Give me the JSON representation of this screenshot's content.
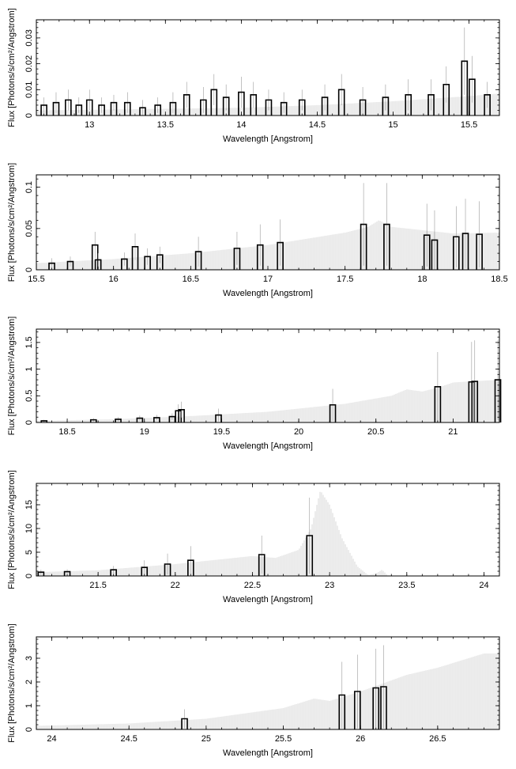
{
  "chart_data": [
    {
      "type": "line",
      "xlabel": "Wavelength [Angstrom]",
      "ylabel": "Flux [Photons/s/cm²/Angstrom]",
      "xlim": [
        12.65,
        15.7
      ],
      "ylim": [
        0,
        0.037
      ],
      "xticks": [
        13,
        13.5,
        14,
        14.5,
        15,
        15.5
      ],
      "xtick_labels": [
        "13",
        "13.5",
        "14",
        "14.5",
        "15",
        "15.5"
      ],
      "yticks": [
        0,
        0.01,
        0.02,
        0.03
      ],
      "ytick_labels": [
        "0",
        "0.01",
        "0.02",
        "0.03"
      ],
      "model_curve": {
        "x": [
          12.65,
          13.0,
          13.5,
          14.0,
          14.5,
          15.0,
          15.5,
          15.7
        ],
        "y": [
          0.002,
          0.0022,
          0.0026,
          0.003,
          0.004,
          0.0055,
          0.0075,
          0.0085
        ]
      },
      "data_points": [
        {
          "x": 12.7,
          "y": 0.004,
          "err": 0.003
        },
        {
          "x": 12.78,
          "y": 0.005,
          "err": 0.004
        },
        {
          "x": 12.86,
          "y": 0.006,
          "err": 0.004
        },
        {
          "x": 12.93,
          "y": 0.004,
          "err": 0.003
        },
        {
          "x": 13.0,
          "y": 0.006,
          "err": 0.004
        },
        {
          "x": 13.08,
          "y": 0.004,
          "err": 0.003
        },
        {
          "x": 13.16,
          "y": 0.005,
          "err": 0.003
        },
        {
          "x": 13.25,
          "y": 0.005,
          "err": 0.004
        },
        {
          "x": 13.35,
          "y": 0.003,
          "err": 0.003
        },
        {
          "x": 13.45,
          "y": 0.004,
          "err": 0.003
        },
        {
          "x": 13.55,
          "y": 0.005,
          "err": 0.004
        },
        {
          "x": 13.64,
          "y": 0.008,
          "err": 0.005
        },
        {
          "x": 13.75,
          "y": 0.006,
          "err": 0.005
        },
        {
          "x": 13.82,
          "y": 0.01,
          "err": 0.006
        },
        {
          "x": 13.9,
          "y": 0.007,
          "err": 0.005
        },
        {
          "x": 14.0,
          "y": 0.009,
          "err": 0.006
        },
        {
          "x": 14.08,
          "y": 0.008,
          "err": 0.005
        },
        {
          "x": 14.18,
          "y": 0.006,
          "err": 0.004
        },
        {
          "x": 14.28,
          "y": 0.005,
          "err": 0.004
        },
        {
          "x": 14.4,
          "y": 0.006,
          "err": 0.004
        },
        {
          "x": 14.55,
          "y": 0.007,
          "err": 0.005
        },
        {
          "x": 14.66,
          "y": 0.01,
          "err": 0.006
        },
        {
          "x": 14.8,
          "y": 0.006,
          "err": 0.005
        },
        {
          "x": 14.95,
          "y": 0.007,
          "err": 0.005
        },
        {
          "x": 15.1,
          "y": 0.008,
          "err": 0.006
        },
        {
          "x": 15.25,
          "y": 0.008,
          "err": 0.006
        },
        {
          "x": 15.35,
          "y": 0.012,
          "err": 0.007
        },
        {
          "x": 15.47,
          "y": 0.021,
          "err": 0.013
        },
        {
          "x": 15.52,
          "y": 0.014,
          "err": 0.009
        },
        {
          "x": 15.62,
          "y": 0.008,
          "err": 0.005
        }
      ]
    },
    {
      "type": "line",
      "xlabel": "Wavelength [Angstrom]",
      "ylabel": "Flux [Photons/s/cm²/Angstrom]",
      "xlim": [
        15.5,
        18.5
      ],
      "ylim": [
        0,
        0.115
      ],
      "xticks": [
        15.5,
        16,
        16.5,
        17,
        17.5,
        18,
        18.5
      ],
      "xtick_labels": [
        "15.5",
        "16",
        "16.5",
        "17",
        "17.5",
        "18",
        "18.5"
      ],
      "yticks": [
        0,
        0.05,
        0.1
      ],
      "ytick_labels": [
        "0",
        "0.05",
        "0.1"
      ],
      "model_curve": {
        "x": [
          15.5,
          16.0,
          16.5,
          17.0,
          17.5,
          17.65,
          17.72,
          17.8,
          18.0,
          18.2,
          18.5
        ],
        "y": [
          0.008,
          0.013,
          0.02,
          0.03,
          0.045,
          0.052,
          0.06,
          0.052,
          0.048,
          0.044,
          0.045
        ]
      },
      "data_points": [
        {
          "x": 15.6,
          "y": 0.008,
          "err": 0.006
        },
        {
          "x": 15.72,
          "y": 0.01,
          "err": 0.006
        },
        {
          "x": 15.88,
          "y": 0.03,
          "err": 0.016
        },
        {
          "x": 15.9,
          "y": 0.012,
          "err": 0.008
        },
        {
          "x": 16.07,
          "y": 0.013,
          "err": 0.008
        },
        {
          "x": 16.14,
          "y": 0.028,
          "err": 0.016
        },
        {
          "x": 16.22,
          "y": 0.016,
          "err": 0.01
        },
        {
          "x": 16.3,
          "y": 0.018,
          "err": 0.01
        },
        {
          "x": 16.55,
          "y": 0.022,
          "err": 0.018
        },
        {
          "x": 16.8,
          "y": 0.026,
          "err": 0.02
        },
        {
          "x": 16.95,
          "y": 0.03,
          "err": 0.025
        },
        {
          "x": 17.08,
          "y": 0.033,
          "err": 0.028
        },
        {
          "x": 17.62,
          "y": 0.055,
          "err": 0.05
        },
        {
          "x": 17.77,
          "y": 0.055,
          "err": 0.05
        },
        {
          "x": 18.03,
          "y": 0.042,
          "err": 0.038
        },
        {
          "x": 18.08,
          "y": 0.036,
          "err": 0.036
        },
        {
          "x": 18.22,
          "y": 0.04,
          "err": 0.037
        },
        {
          "x": 18.28,
          "y": 0.044,
          "err": 0.042
        },
        {
          "x": 18.37,
          "y": 0.043,
          "err": 0.04
        }
      ]
    },
    {
      "type": "line",
      "xlabel": "Wavelength [Angstrom]",
      "ylabel": "Flux [Photons/s/cm²/Angstrom]",
      "xlim": [
        18.3,
        21.3
      ],
      "ylim": [
        0,
        1.75
      ],
      "xticks": [
        18.5,
        19,
        19.5,
        20,
        20.5,
        21
      ],
      "xtick_labels": [
        "18.5",
        "19",
        "19.5",
        "20",
        "20.5",
        "21"
      ],
      "yticks": [
        0,
        0.5,
        1,
        1.5
      ],
      "ytick_labels": [
        "0",
        "0.5",
        "1",
        "1.5"
      ],
      "model_curve": {
        "x": [
          18.3,
          18.8,
          19.3,
          19.8,
          20.3,
          20.6,
          20.7,
          20.8,
          20.9,
          21.0,
          21.3
        ],
        "y": [
          0.03,
          0.06,
          0.12,
          0.2,
          0.35,
          0.5,
          0.62,
          0.58,
          0.65,
          0.75,
          0.8
        ]
      },
      "data_points": [
        {
          "x": 18.35,
          "y": 0.03,
          "err": 0.02
        },
        {
          "x": 18.67,
          "y": 0.05,
          "err": 0.03
        },
        {
          "x": 18.83,
          "y": 0.06,
          "err": 0.04
        },
        {
          "x": 18.97,
          "y": 0.08,
          "err": 0.05
        },
        {
          "x": 19.08,
          "y": 0.09,
          "err": 0.05
        },
        {
          "x": 19.18,
          "y": 0.11,
          "err": 0.06
        },
        {
          "x": 19.22,
          "y": 0.22,
          "err": 0.12
        },
        {
          "x": 19.24,
          "y": 0.24,
          "err": 0.15
        },
        {
          "x": 19.48,
          "y": 0.14,
          "err": 0.12
        },
        {
          "x": 20.22,
          "y": 0.33,
          "err": 0.3
        },
        {
          "x": 20.9,
          "y": 0.67,
          "err": 0.65
        },
        {
          "x": 21.12,
          "y": 0.76,
          "err": 0.75
        },
        {
          "x": 21.14,
          "y": 0.77,
          "err": 0.77
        },
        {
          "x": 21.29,
          "y": 0.8,
          "err": 0.75
        }
      ]
    },
    {
      "type": "line",
      "xlabel": "Wavelength [Angstrom]",
      "ylabel": "Flux [Photons/s/cm²/Angstrom]",
      "xlim": [
        21.1,
        24.1
      ],
      "ylim": [
        0,
        19.5
      ],
      "xticks": [
        21.5,
        22,
        22.5,
        23,
        23.5,
        24
      ],
      "xtick_labels": [
        "21.5",
        "22",
        "22.5",
        "23",
        "23.5",
        "24"
      ],
      "yticks": [
        0,
        5,
        10,
        15
      ],
      "ytick_labels": [
        "0",
        "5",
        "10",
        "15"
      ],
      "model_curve": {
        "x": [
          21.1,
          21.5,
          22.0,
          22.5,
          22.65,
          22.8,
          22.88,
          22.94,
          23.0,
          23.08,
          23.18,
          23.25,
          23.3,
          23.34,
          23.38,
          24.1
        ],
        "y": [
          0.8,
          1.2,
          2.5,
          4.2,
          3.8,
          5.5,
          10.0,
          18.0,
          15.0,
          8.0,
          2.0,
          0.2,
          0.5,
          1.3,
          0.0,
          0.0
        ]
      },
      "data_points": [
        {
          "x": 21.13,
          "y": 0.8,
          "err": 0.5
        },
        {
          "x": 21.3,
          "y": 0.9,
          "err": 0.5
        },
        {
          "x": 21.6,
          "y": 1.3,
          "err": 0.8
        },
        {
          "x": 21.8,
          "y": 1.8,
          "err": 1.5
        },
        {
          "x": 21.95,
          "y": 2.5,
          "err": 2.2
        },
        {
          "x": 22.1,
          "y": 3.3,
          "err": 3.0
        },
        {
          "x": 22.56,
          "y": 4.5,
          "err": 4.0
        },
        {
          "x": 22.87,
          "y": 8.5,
          "err": 8.0
        }
      ]
    },
    {
      "type": "line",
      "xlabel": "Wavelength [Angstrom]",
      "ylabel": "Flux [Photons/s/cm²/Angstrom]",
      "xlim": [
        23.9,
        26.9
      ],
      "ylim": [
        0,
        3.9
      ],
      "xticks": [
        24,
        24.5,
        25,
        25.5,
        26,
        26.5
      ],
      "xtick_labels": [
        "24",
        "24.5",
        "25",
        "25.5",
        "26",
        "26.5"
      ],
      "yticks": [
        0,
        1,
        2,
        3
      ],
      "ytick_labels": [
        "0",
        "1",
        "2",
        "3"
      ],
      "model_curve": {
        "x": [
          23.9,
          24.5,
          25.0,
          25.5,
          25.7,
          25.8,
          26.0,
          26.3,
          26.5,
          26.8,
          26.9
        ],
        "y": [
          0.15,
          0.25,
          0.45,
          0.9,
          1.3,
          1.2,
          1.6,
          2.3,
          2.6,
          3.2,
          3.2
        ]
      },
      "data_points": [
        {
          "x": 24.86,
          "y": 0.45,
          "err": 0.4
        },
        {
          "x": 25.88,
          "y": 1.45,
          "err": 1.4
        },
        {
          "x": 25.98,
          "y": 1.6,
          "err": 1.55
        },
        {
          "x": 26.1,
          "y": 1.75,
          "err": 1.65
        },
        {
          "x": 26.15,
          "y": 1.8,
          "err": 1.75
        }
      ]
    }
  ]
}
